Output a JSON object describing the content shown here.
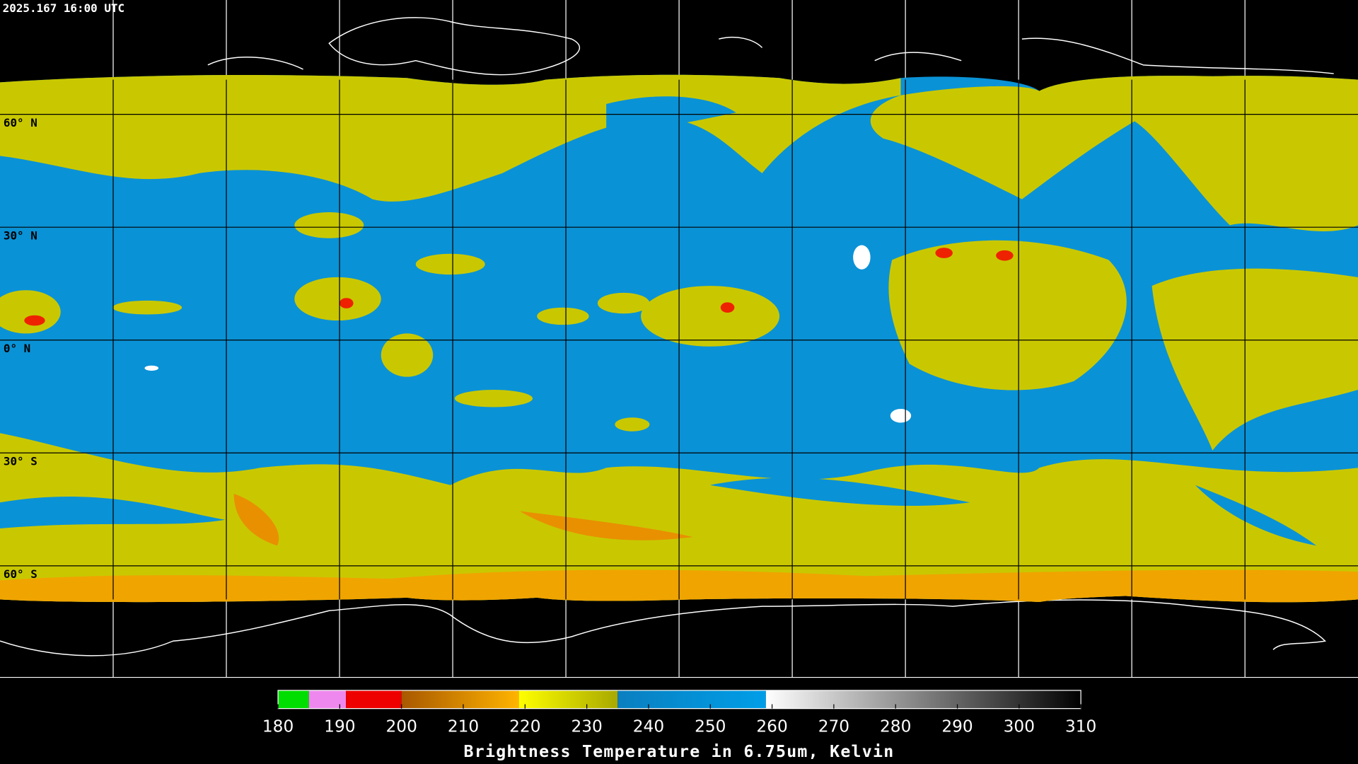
{
  "header": {
    "timestamp": "2025.167 16:00 UTC"
  },
  "map": {
    "lat_labels": [
      "60° N",
      "30° N",
      "0° N",
      "30° S",
      "60° S"
    ]
  },
  "colorbar": {
    "range": [
      180,
      310
    ],
    "ticks": [
      180,
      190,
      200,
      210,
      220,
      230,
      240,
      250,
      260,
      270,
      280,
      290,
      300,
      310
    ],
    "segments": [
      {
        "from": 180,
        "to": 185,
        "colors": [
          "#00dd00",
          "#00dd00"
        ]
      },
      {
        "from": 185,
        "to": 191,
        "colors": [
          "#ee88ee",
          "#ee88ee"
        ]
      },
      {
        "from": 191,
        "to": 200,
        "colors": [
          "#ee0000",
          "#ee0000"
        ]
      },
      {
        "from": 200,
        "to": 219,
        "colors": [
          "#a85800",
          "#ffb400"
        ]
      },
      {
        "from": 219,
        "to": 235,
        "colors": [
          "#ffff00",
          "#a8a800"
        ]
      },
      {
        "from": 235,
        "to": 259,
        "colors": [
          "#0a7fc0",
          "#009ee8"
        ]
      },
      {
        "from": 259,
        "to": 310,
        "colors": [
          "#ffffff",
          "#000000"
        ]
      }
    ],
    "label": "Brightness Temperature in 6.75um, Kelvin"
  }
}
